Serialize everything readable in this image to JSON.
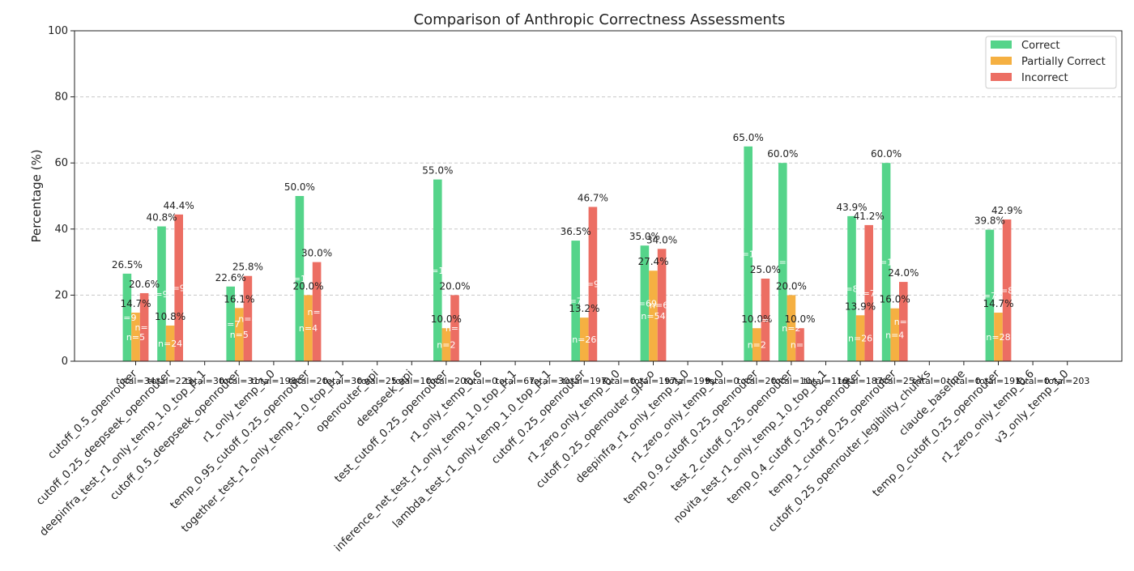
{
  "chart_data": {
    "type": "bar",
    "title": "Comparison of Anthropic Correctness Assessments",
    "xlabel": "",
    "ylabel": "Percentage (%)",
    "ylim": [
      0,
      100
    ],
    "yticks": [
      0,
      20,
      40,
      60,
      80,
      100
    ],
    "grid": "y-dashed",
    "legend_position": "top-right",
    "categories": [
      "cutoff_0.5_openrouter",
      "cutoff_0.25_deepseek_openrouter",
      "deepinfra_test_r1_only_temp_1.0_top_p_1",
      "cutoff_0.5_deepseek_openrouter",
      "r1_only_temp_1.0",
      "temp_0.95_cutoff_0.25_openrouter",
      "together_test_r1_only_temp_1.0_top_p_1",
      "openrouter_api",
      "deepseek_api",
      "test_cutoff_0.25_openrouter",
      "r1_only_temp_0.6",
      "inference_net_test_r1_only_temp_1.0_top_p_1",
      "lambda_test_r1_only_temp_1.0_top_p_1",
      "cutoff_0.25_openrouter",
      "r1_zero_only_temp_0.0",
      "cutoff_0.25_openrouter_gpt-o",
      "deepinfra_r1_only_temp_1.0",
      "r1_zero_only_temp_1.0",
      "temp_0.9_cutoff_0.25_openrouter",
      "test_2_cutoff_0.25_openrouter",
      "novita_test_r1_only_temp_1.0_top_p_1",
      "temp_0.4_cutoff_0.25_openrouter",
      "temp_1_cutoff_0.25_openrouter",
      "cutoff_0.25_openrouter_legibility_chunks",
      "claude_baseline",
      "temp_0_cutoff_0.25_openrouter",
      "r1_zero_only_temp_0.6",
      "v3_only_temp_1.0"
    ],
    "totals": [
      "total=34",
      "total=223",
      "total=30",
      "total=31",
      "total=198",
      "total=20",
      "total=30",
      "total=25",
      "total=10",
      "total=20",
      "total=0",
      "total=67",
      "total=30",
      "total=197",
      "total=0",
      "total=197",
      "total=199",
      "total=0",
      "total=20",
      "total=10",
      "total=116",
      "total=187",
      "total=25",
      "total=0",
      "total=0",
      "total=191",
      "total=0",
      "total=203"
    ],
    "series": [
      {
        "name": "Correct",
        "color": "#55d48a",
        "values": [
          26.5,
          40.8,
          null,
          22.6,
          null,
          50.0,
          null,
          null,
          null,
          55.0,
          null,
          null,
          null,
          36.5,
          null,
          35.0,
          null,
          null,
          65.0,
          60.0,
          null,
          43.9,
          60.0,
          null,
          null,
          39.8,
          null,
          null
        ],
        "value_labels": [
          "26.5%",
          "40.8%",
          "",
          "22.6%",
          "",
          "50.0%",
          "",
          "",
          "",
          "55.0%",
          "",
          "",
          "",
          "36.5%",
          "",
          "35.0%",
          "",
          "",
          "65.0%",
          "60.0%",
          "",
          "43.9%",
          "60.0%",
          "",
          "",
          "39.8%",
          "",
          ""
        ],
        "count_labels": [
          "n=9",
          "n=91",
          "",
          "n=7",
          "",
          "n=10",
          "",
          "",
          "",
          "n=11",
          "",
          "",
          "",
          "n=72",
          "",
          "n=69",
          "",
          "",
          "n=13",
          "n=6",
          "",
          "n=82",
          "n=15",
          "",
          "",
          "n=76",
          "",
          ""
        ]
      },
      {
        "name": "Partially Correct",
        "color": "#f5b042",
        "values": [
          14.7,
          10.8,
          null,
          16.1,
          null,
          20.0,
          null,
          null,
          null,
          10.0,
          null,
          null,
          null,
          13.2,
          null,
          27.4,
          null,
          null,
          10.0,
          20.0,
          null,
          13.9,
          16.0,
          null,
          null,
          14.7,
          null,
          null
        ],
        "value_labels": [
          "14.7%",
          "10.8%",
          "",
          "16.1%",
          "",
          "20.0%",
          "",
          "",
          "",
          "10.0%",
          "",
          "",
          "",
          "13.2%",
          "",
          "27.4%",
          "",
          "",
          "10.0%",
          "20.0%",
          "",
          "13.9%",
          "16.0%",
          "",
          "",
          "14.7%",
          "",
          ""
        ],
        "count_labels": [
          "n=5",
          "n=24",
          "",
          "n=5",
          "",
          "n=4",
          "",
          "",
          "",
          "n=2",
          "",
          "",
          "",
          "n=26",
          "",
          "n=54",
          "",
          "",
          "n=2",
          "n=2",
          "",
          "n=26",
          "n=4",
          "",
          "",
          "n=28",
          "",
          ""
        ]
      },
      {
        "name": "Incorrect",
        "color": "#ec6e63",
        "values": [
          20.6,
          44.4,
          null,
          25.8,
          null,
          30.0,
          null,
          null,
          null,
          20.0,
          null,
          null,
          null,
          46.7,
          null,
          34.0,
          null,
          null,
          25.0,
          10.0,
          null,
          41.2,
          24.0,
          null,
          null,
          42.9,
          null,
          null
        ],
        "value_labels": [
          "20.6%",
          "44.4%",
          "",
          "25.8%",
          "",
          "30.0%",
          "",
          "",
          "",
          "20.0%",
          "",
          "",
          "",
          "46.7%",
          "",
          "34.0%",
          "",
          "",
          "25.0%",
          "10.0%",
          "",
          "41.2%",
          "24.0%",
          "",
          "",
          "42.9%",
          "",
          ""
        ],
        "count_labels": [
          "n=7",
          "n=99",
          "",
          "n=8",
          "",
          "n=6",
          "",
          "",
          "",
          "n=4",
          "",
          "",
          "",
          "n=92",
          "",
          "n=67",
          "",
          "",
          "n=5",
          "n=1",
          "",
          "n=77",
          "n=6",
          "",
          "",
          "n=82",
          "",
          ""
        ]
      }
    ]
  }
}
